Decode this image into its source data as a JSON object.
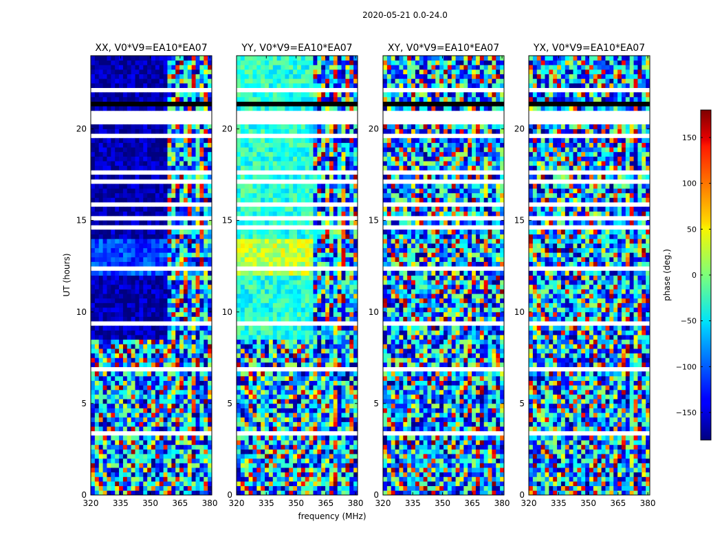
{
  "suptitle": "2020-05-21 0.0-24.0",
  "ylabel": "UT (hours)",
  "xlabel": "frequency (MHz)",
  "colorbar": {
    "label": "phase (deg.)",
    "range": [
      -180,
      180
    ],
    "ticks": [
      -150,
      -100,
      -50,
      0,
      50,
      100,
      150
    ],
    "colormap": "jet"
  },
  "chart_data": [
    {
      "type": "heatmap",
      "title": "XX, V0*V9=EA10*EA07",
      "xlim": [
        320,
        381
      ],
      "ylim": [
        0,
        24
      ],
      "xticks": [
        320,
        335,
        350,
        365,
        380
      ],
      "yticks": [
        0,
        5,
        10,
        15,
        20
      ],
      "value": "phase (deg.)",
      "range": [
        -180,
        180
      ]
    },
    {
      "type": "heatmap",
      "title": "YY, V0*V9=EA10*EA07",
      "xlim": [
        320,
        381
      ],
      "ylim": [
        0,
        24
      ],
      "xticks": [
        320,
        335,
        350,
        365,
        380
      ],
      "yticks": [
        0,
        5,
        10,
        15,
        20
      ],
      "value": "phase (deg.)",
      "range": [
        -180,
        180
      ]
    },
    {
      "type": "heatmap",
      "title": "XY, V0*V9=EA10*EA07",
      "xlim": [
        320,
        381
      ],
      "ylim": [
        0,
        24
      ],
      "xticks": [
        320,
        335,
        350,
        365,
        380
      ],
      "yticks": [
        0,
        5,
        10,
        15,
        20
      ],
      "value": "phase (deg.)",
      "range": [
        -180,
        180
      ]
    },
    {
      "type": "heatmap",
      "title": "YX, V0*V9=EA10*EA07",
      "xlim": [
        320,
        381
      ],
      "ylim": [
        0,
        24
      ],
      "xticks": [
        320,
        335,
        350,
        365,
        380
      ],
      "yticks": [
        0,
        5,
        10,
        15,
        20
      ],
      "value": "phase (deg.)",
      "range": [
        -180,
        180
      ]
    }
  ]
}
